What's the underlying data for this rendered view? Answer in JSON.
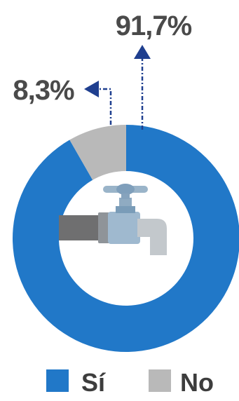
{
  "colors": {
    "si": "#2178c8",
    "no": "#b9b9b9",
    "arrow": "#1f3f8f",
    "label": "#4a4a4a"
  },
  "center_icon": "water-faucet-icon",
  "chart_data": {
    "type": "pie",
    "variant": "donut",
    "title": "",
    "categories": [
      "Sí",
      "No"
    ],
    "values": [
      91.7,
      8.3
    ],
    "value_labels": [
      "91,7%",
      "8,3%"
    ],
    "unit": "%",
    "legend": {
      "placement": "bottom",
      "entries": [
        "Sí",
        "No"
      ]
    }
  }
}
